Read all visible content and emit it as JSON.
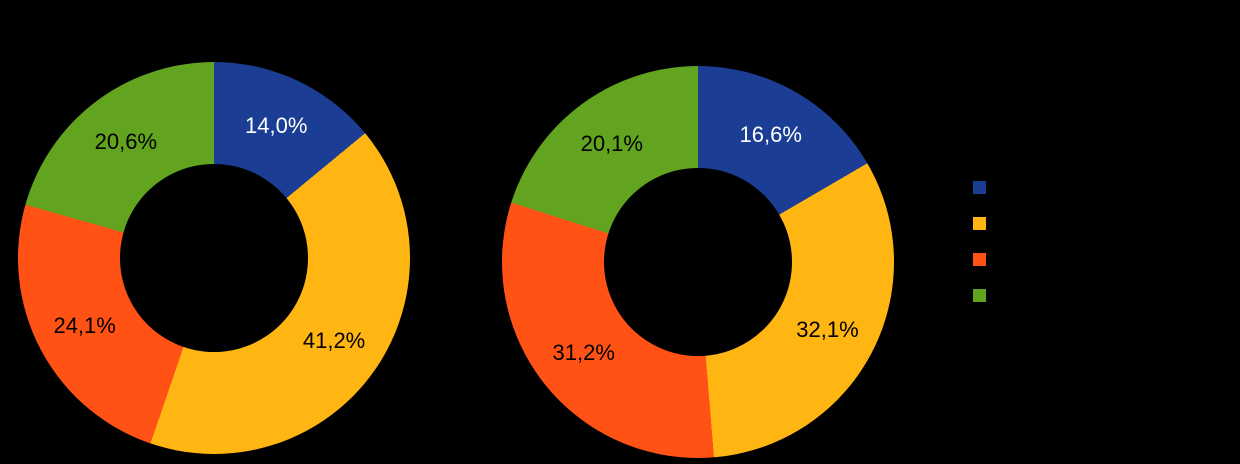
{
  "background_color": "#000000",
  "chart_data": [
    {
      "type": "pie",
      "subtype": "doughnut",
      "values": [
        14.0,
        41.2,
        24.1,
        20.6
      ],
      "labels": [
        "14,0%",
        "41,2%",
        "24,1%",
        "20,6%"
      ],
      "colors": [
        "#1b3d94",
        "#ffb612",
        "#ff5214",
        "#62a420"
      ],
      "label_colors": [
        "#ffffff",
        "#000000",
        "#000000",
        "#000000"
      ],
      "start_angle_deg": 0,
      "direction": "clockwise",
      "inner_radius_ratio": 0.48
    },
    {
      "type": "pie",
      "subtype": "doughnut",
      "values": [
        16.6,
        32.1,
        31.2,
        20.1
      ],
      "labels": [
        "16,6%",
        "32,1%",
        "31,2%",
        "20,1%"
      ],
      "colors": [
        "#1b3d94",
        "#ffb612",
        "#ff5214",
        "#62a420"
      ],
      "label_colors": [
        "#ffffff",
        "#000000",
        "#000000",
        "#000000"
      ],
      "start_angle_deg": 0,
      "direction": "clockwise",
      "inner_radius_ratio": 0.48
    }
  ],
  "legend": {
    "position": "right",
    "swatches": [
      "#1b3d94",
      "#ffb612",
      "#ff5214",
      "#62a420"
    ]
  }
}
